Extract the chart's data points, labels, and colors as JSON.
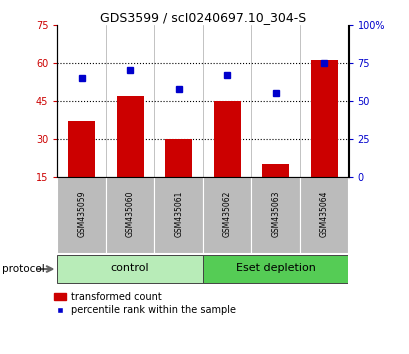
{
  "title": "GDS3599 / scI0240697.10_304-S",
  "samples": [
    "GSM435059",
    "GSM435060",
    "GSM435061",
    "GSM435062",
    "GSM435063",
    "GSM435064"
  ],
  "red_values": [
    37,
    47,
    30,
    45,
    20,
    61
  ],
  "blue_values": [
    65,
    70,
    58,
    67,
    55,
    75
  ],
  "left_ylim": [
    15,
    75
  ],
  "right_ylim": [
    0,
    100
  ],
  "left_yticks": [
    15,
    30,
    45,
    60,
    75
  ],
  "right_yticks": [
    0,
    25,
    50,
    75,
    100
  ],
  "right_yticklabels": [
    "0",
    "25",
    "50",
    "75",
    "100%"
  ],
  "hlines": [
    30,
    45,
    60
  ],
  "groups": [
    {
      "label": "control",
      "start": 0,
      "end": 3,
      "color": "#b8ecb8"
    },
    {
      "label": "Eset depletion",
      "start": 3,
      "end": 6,
      "color": "#55cc55"
    }
  ],
  "protocol_label": "protocol",
  "bar_color": "#cc0000",
  "dot_color": "#0000cc",
  "legend_bar_label": "transformed count",
  "legend_dot_label": "percentile rank within the sample",
  "bar_width": 0.55,
  "label_area_color": "#bbbbbb",
  "title_fontsize": 9
}
